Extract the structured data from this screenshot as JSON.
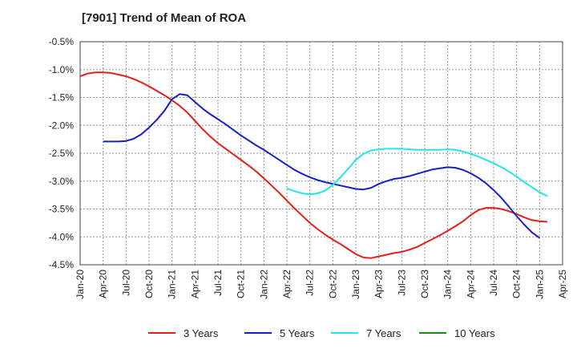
{
  "chart_data": {
    "type": "line",
    "title": "[7901]  Trend of Mean of ROA",
    "ylim": [
      -4.5,
      -0.5
    ],
    "y_ticks": [
      "-0.5%",
      "-1.0%",
      "-1.5%",
      "-2.0%",
      "-2.5%",
      "-3.0%",
      "-3.5%",
      "-4.0%",
      "-4.5%"
    ],
    "y_tick_values": [
      -0.5,
      -1.0,
      -1.5,
      -2.0,
      -2.5,
      -3.0,
      -3.5,
      -4.0,
      -4.5
    ],
    "x_ticks": [
      "Jan-20",
      "Apr-20",
      "Jul-20",
      "Oct-20",
      "Jan-21",
      "Apr-21",
      "Jul-21",
      "Oct-21",
      "Jan-22",
      "Apr-22",
      "Jul-22",
      "Oct-22",
      "Jan-23",
      "Apr-23",
      "Jul-23",
      "Oct-23",
      "Jan-24",
      "Apr-24",
      "Jul-24",
      "Oct-24",
      "Jan-25",
      "Apr-25"
    ],
    "grid": true,
    "legend_position": "bottom",
    "series": [
      {
        "name": "3 Years",
        "color": "#e0201b",
        "points": [
          [
            "Jan-20",
            -1.12
          ],
          [
            "Feb-20",
            -1.07
          ],
          [
            "Mar-20",
            -1.05
          ],
          [
            "Apr-20",
            -1.05
          ],
          [
            "May-20",
            -1.06
          ],
          [
            "Jun-20",
            -1.09
          ],
          [
            "Jul-20",
            -1.12
          ],
          [
            "Aug-20",
            -1.17
          ],
          [
            "Sep-20",
            -1.23
          ],
          [
            "Oct-20",
            -1.3
          ],
          [
            "Nov-20",
            -1.38
          ],
          [
            "Dec-20",
            -1.46
          ],
          [
            "Jan-21",
            -1.55
          ],
          [
            "Feb-21",
            -1.65
          ],
          [
            "Mar-21",
            -1.77
          ],
          [
            "Apr-21",
            -1.92
          ],
          [
            "May-21",
            -2.07
          ],
          [
            "Jun-21",
            -2.2
          ],
          [
            "Jul-21",
            -2.32
          ],
          [
            "Aug-21",
            -2.42
          ],
          [
            "Sep-21",
            -2.52
          ],
          [
            "Oct-21",
            -2.62
          ],
          [
            "Nov-21",
            -2.72
          ],
          [
            "Dec-21",
            -2.83
          ],
          [
            "Jan-22",
            -2.95
          ],
          [
            "Feb-22",
            -3.08
          ],
          [
            "Mar-22",
            -3.21
          ],
          [
            "Apr-22",
            -3.35
          ],
          [
            "May-22",
            -3.49
          ],
          [
            "Jun-22",
            -3.62
          ],
          [
            "Jul-22",
            -3.75
          ],
          [
            "Aug-22",
            -3.86
          ],
          [
            "Sep-22",
            -3.96
          ],
          [
            "Oct-22",
            -4.05
          ],
          [
            "Nov-22",
            -4.13
          ],
          [
            "Dec-22",
            -4.22
          ],
          [
            "Jan-23",
            -4.31
          ],
          [
            "Feb-23",
            -4.37
          ],
          [
            "Mar-23",
            -4.38
          ],
          [
            "Apr-23",
            -4.35
          ],
          [
            "May-23",
            -4.32
          ],
          [
            "Jun-23",
            -4.29
          ],
          [
            "Jul-23",
            -4.27
          ],
          [
            "Aug-23",
            -4.23
          ],
          [
            "Sep-23",
            -4.18
          ],
          [
            "Oct-23",
            -4.11
          ],
          [
            "Nov-23",
            -4.04
          ],
          [
            "Dec-23",
            -3.97
          ],
          [
            "Jan-24",
            -3.89
          ],
          [
            "Feb-24",
            -3.81
          ],
          [
            "Mar-24",
            -3.72
          ],
          [
            "Apr-24",
            -3.61
          ],
          [
            "May-24",
            -3.52
          ],
          [
            "Jun-24",
            -3.48
          ],
          [
            "Jul-24",
            -3.48
          ],
          [
            "Aug-24",
            -3.5
          ],
          [
            "Sep-24",
            -3.54
          ],
          [
            "Oct-24",
            -3.59
          ],
          [
            "Nov-24",
            -3.65
          ],
          [
            "Dec-24",
            -3.7
          ],
          [
            "Jan-25",
            -3.72
          ],
          [
            "Feb-25",
            -3.73
          ]
        ]
      },
      {
        "name": "5 Years",
        "color": "#1520c8",
        "points": [
          [
            "Apr-20",
            -2.29
          ],
          [
            "May-20",
            -2.29
          ],
          [
            "Jun-20",
            -2.29
          ],
          [
            "Jul-20",
            -2.28
          ],
          [
            "Aug-20",
            -2.24
          ],
          [
            "Sep-20",
            -2.16
          ],
          [
            "Oct-20",
            -2.04
          ],
          [
            "Nov-20",
            -1.9
          ],
          [
            "Dec-20",
            -1.74
          ],
          [
            "Jan-21",
            -1.53
          ],
          [
            "Feb-21",
            -1.44
          ],
          [
            "Mar-21",
            -1.46
          ],
          [
            "Apr-21",
            -1.58
          ],
          [
            "May-21",
            -1.7
          ],
          [
            "Jun-21",
            -1.8
          ],
          [
            "Jul-21",
            -1.89
          ],
          [
            "Aug-21",
            -1.98
          ],
          [
            "Sep-21",
            -2.08
          ],
          [
            "Oct-21",
            -2.18
          ],
          [
            "Nov-21",
            -2.27
          ],
          [
            "Dec-21",
            -2.36
          ],
          [
            "Jan-22",
            -2.44
          ],
          [
            "Feb-22",
            -2.53
          ],
          [
            "Mar-22",
            -2.62
          ],
          [
            "Apr-22",
            -2.71
          ],
          [
            "May-22",
            -2.8
          ],
          [
            "Jun-22",
            -2.87
          ],
          [
            "Jul-22",
            -2.93
          ],
          [
            "Aug-22",
            -2.98
          ],
          [
            "Sep-22",
            -3.02
          ],
          [
            "Oct-22",
            -3.05
          ],
          [
            "Nov-22",
            -3.08
          ],
          [
            "Dec-22",
            -3.11
          ],
          [
            "Jan-23",
            -3.14
          ],
          [
            "Feb-23",
            -3.15
          ],
          [
            "Mar-23",
            -3.12
          ],
          [
            "Apr-23",
            -3.05
          ],
          [
            "May-23",
            -3.0
          ],
          [
            "Jun-23",
            -2.96
          ],
          [
            "Jul-23",
            -2.94
          ],
          [
            "Aug-23",
            -2.91
          ],
          [
            "Sep-23",
            -2.87
          ],
          [
            "Oct-23",
            -2.83
          ],
          [
            "Nov-23",
            -2.79
          ],
          [
            "Dec-23",
            -2.77
          ],
          [
            "Jan-24",
            -2.75
          ],
          [
            "Feb-24",
            -2.76
          ],
          [
            "Mar-24",
            -2.8
          ],
          [
            "Apr-24",
            -2.86
          ],
          [
            "May-24",
            -2.94
          ],
          [
            "Jun-24",
            -3.04
          ],
          [
            "Jul-24",
            -3.16
          ],
          [
            "Aug-24",
            -3.3
          ],
          [
            "Sep-24",
            -3.46
          ],
          [
            "Oct-24",
            -3.63
          ],
          [
            "Nov-24",
            -3.78
          ],
          [
            "Dec-24",
            -3.92
          ],
          [
            "Jan-25",
            -4.02
          ]
        ]
      },
      {
        "name": "7 Years",
        "color": "#22e6ea",
        "points": [
          [
            "Apr-22",
            -3.13
          ],
          [
            "May-22",
            -3.18
          ],
          [
            "Jun-22",
            -3.22
          ],
          [
            "Jul-22",
            -3.24
          ],
          [
            "Aug-22",
            -3.22
          ],
          [
            "Sep-22",
            -3.17
          ],
          [
            "Oct-22",
            -3.07
          ],
          [
            "Nov-22",
            -2.93
          ],
          [
            "Dec-22",
            -2.78
          ],
          [
            "Jan-23",
            -2.62
          ],
          [
            "Feb-23",
            -2.51
          ],
          [
            "Mar-23",
            -2.45
          ],
          [
            "Apr-23",
            -2.43
          ],
          [
            "May-23",
            -2.42
          ],
          [
            "Jun-23",
            -2.42
          ],
          [
            "Jul-23",
            -2.42
          ],
          [
            "Aug-23",
            -2.43
          ],
          [
            "Sep-23",
            -2.44
          ],
          [
            "Oct-23",
            -2.44
          ],
          [
            "Nov-23",
            -2.44
          ],
          [
            "Dec-23",
            -2.44
          ],
          [
            "Jan-24",
            -2.43
          ],
          [
            "Feb-24",
            -2.44
          ],
          [
            "Mar-24",
            -2.47
          ],
          [
            "Apr-24",
            -2.51
          ],
          [
            "May-24",
            -2.56
          ],
          [
            "Jun-24",
            -2.62
          ],
          [
            "Jul-24",
            -2.68
          ],
          [
            "Aug-24",
            -2.75
          ],
          [
            "Sep-24",
            -2.83
          ],
          [
            "Oct-24",
            -2.92
          ],
          [
            "Nov-24",
            -3.02
          ],
          [
            "Dec-24",
            -3.11
          ],
          [
            "Jan-25",
            -3.2
          ],
          [
            "Feb-25",
            -3.27
          ]
        ]
      },
      {
        "name": "10 Years",
        "color": "#1a8a1a",
        "points": []
      }
    ]
  }
}
